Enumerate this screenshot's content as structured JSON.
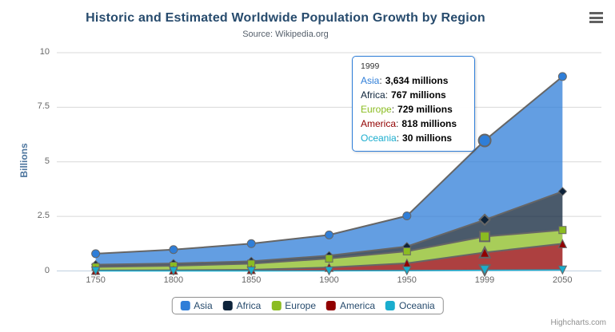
{
  "chart_data": {
    "type": "area",
    "stacked": true,
    "title": "Historic and Estimated Worldwide Population Growth by Region",
    "subtitle": "Source: Wikipedia.org",
    "ylabel": "Billions",
    "ylim": [
      0,
      10
    ],
    "yticks": [
      "0",
      "2.5",
      "5",
      "7.5",
      "10"
    ],
    "categories": [
      "1750",
      "1800",
      "1850",
      "1900",
      "1950",
      "1999",
      "2050"
    ],
    "value_unit": "millions",
    "grid": true,
    "legend_position": "bottom",
    "series": [
      {
        "name": "Asia",
        "color": "#2f7ed8",
        "marker": "circle",
        "values": [
          502,
          635,
          809,
          947,
          1402,
          3634,
          5268
        ]
      },
      {
        "name": "Africa",
        "color": "#0d233a",
        "marker": "diamond",
        "values": [
          106,
          107,
          111,
          133,
          221,
          767,
          1766
        ]
      },
      {
        "name": "Europe",
        "color": "#8bbc21",
        "marker": "square",
        "values": [
          163,
          203,
          276,
          408,
          547,
          729,
          628
        ]
      },
      {
        "name": "America",
        "color": "#910000",
        "marker": "triangle-up",
        "values": [
          18,
          31,
          54,
          156,
          339,
          818,
          1201
        ]
      },
      {
        "name": "Oceania",
        "color": "#1aadce",
        "marker": "triangle-down",
        "values": [
          2,
          2,
          2,
          6,
          13,
          30,
          46
        ]
      }
    ]
  },
  "tooltip": {
    "header": "1999",
    "category_index": 5,
    "separator": ":",
    "border_color": "#2f7ed8",
    "rows": [
      {
        "label": "Asia",
        "value": "3,634 millions"
      },
      {
        "label": "Africa",
        "value": "767 millions"
      },
      {
        "label": "Europe",
        "value": "729 millions"
      },
      {
        "label": "America",
        "value": "818 millions"
      },
      {
        "label": "Oceania",
        "value": "30 millions"
      }
    ]
  },
  "credits": {
    "label": "Highcharts.com"
  },
  "colors": {
    "title": "#274b6d",
    "subtitle": "#555f6b",
    "axis_title": "#4d759e",
    "axis_label": "#666666",
    "legend_text": "#274b6d",
    "legend_border": "#909090",
    "grid_line": "#d8d8d8",
    "axis_line": "#c0d0e0",
    "series_outline": "#666666",
    "credits_text": "#909090"
  }
}
